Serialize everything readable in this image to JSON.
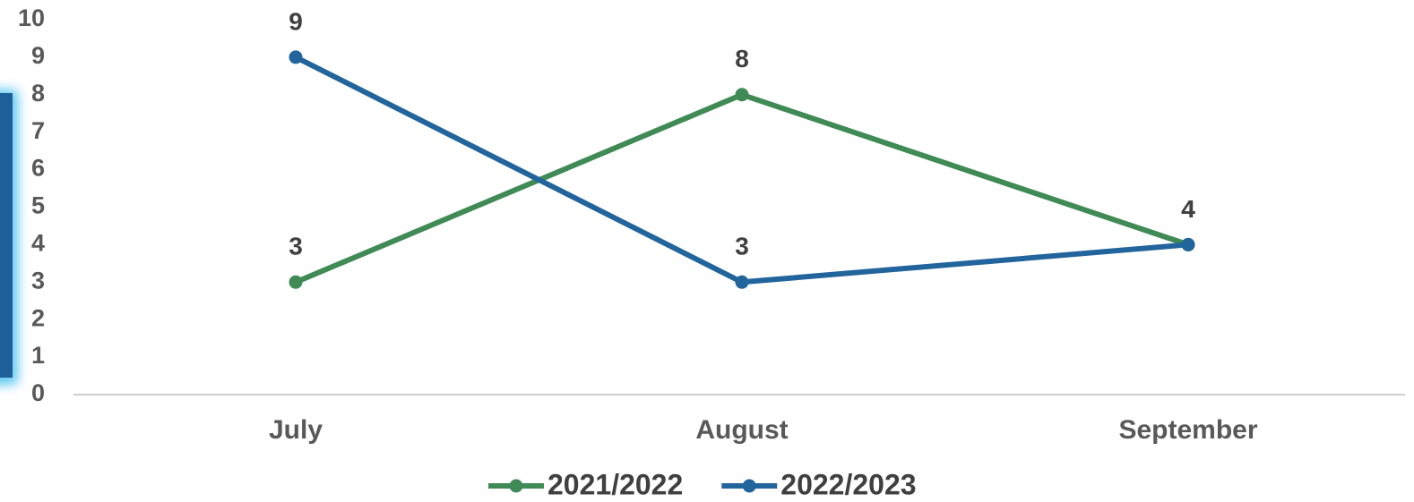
{
  "chart_data": {
    "type": "line",
    "categories": [
      "July",
      "August",
      "September"
    ],
    "series": [
      {
        "name": "2021/2022",
        "color": "#3f8a55",
        "values": [
          3,
          8,
          4
        ]
      },
      {
        "name": "2022/2023",
        "color": "#22649c",
        "values": [
          9,
          3,
          4
        ]
      }
    ],
    "ylim": [
      0,
      10
    ],
    "yticks": [
      0,
      1,
      2,
      3,
      4,
      5,
      6,
      7,
      8,
      9,
      10
    ],
    "grid": false,
    "data_labels": true,
    "legend": "bottom"
  }
}
